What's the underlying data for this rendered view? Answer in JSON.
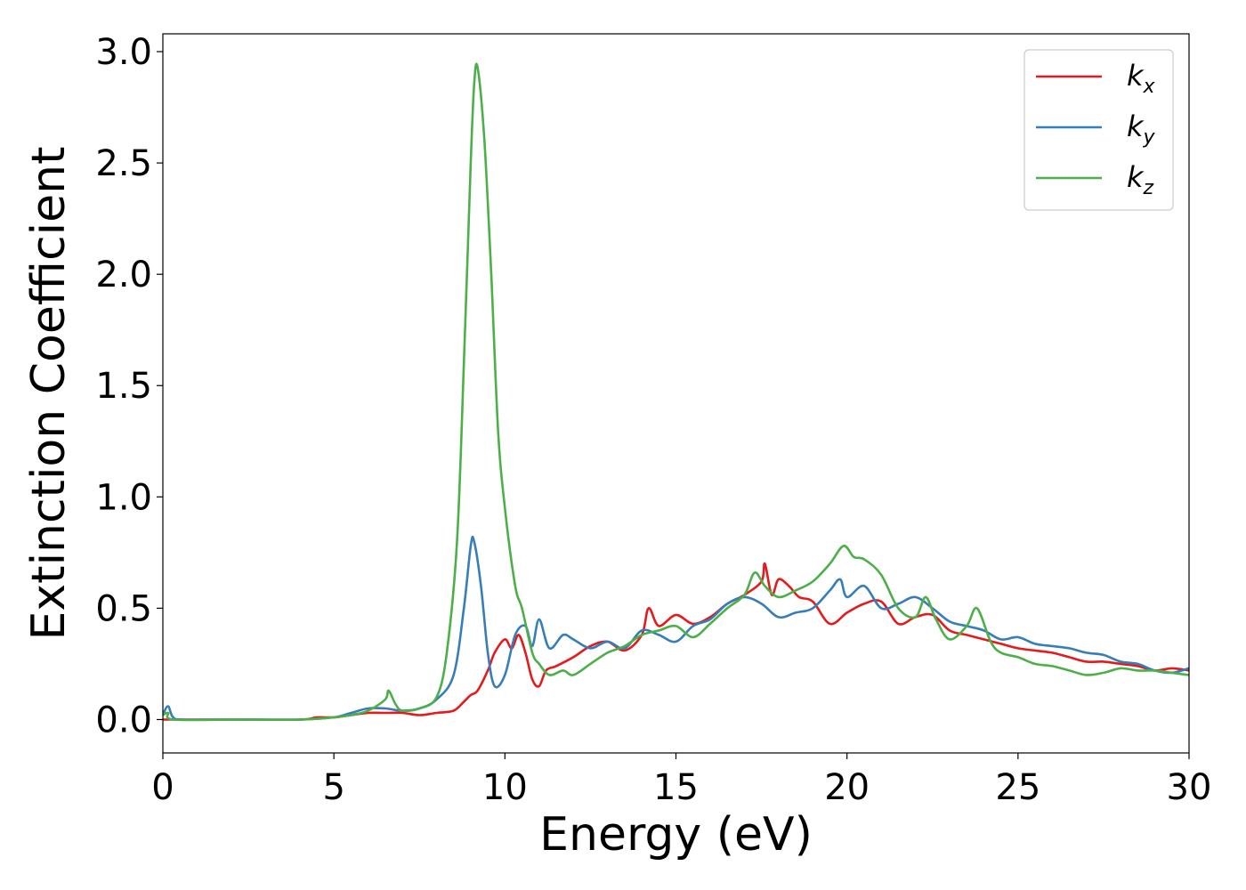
{
  "chart_data": {
    "type": "line",
    "xlabel": "Energy (eV)",
    "ylabel": "Extinction Coefficient",
    "xlim": [
      0,
      30
    ],
    "ylim": [
      -0.15,
      3.08
    ],
    "xticks": [
      0,
      5,
      10,
      15,
      20,
      25,
      30
    ],
    "yticks": [
      0.0,
      0.5,
      1.0,
      1.5,
      2.0,
      2.5,
      3.0
    ],
    "xtick_labels": [
      "0",
      "5",
      "10",
      "15",
      "20",
      "25",
      "30"
    ],
    "ytick_labels": [
      "0.0",
      "0.5",
      "1.0",
      "1.5",
      "2.0",
      "2.5",
      "3.0"
    ],
    "grid": false,
    "legend_position": "top-right",
    "series": [
      {
        "name": "k_x",
        "label_base": "k",
        "label_sub": "x",
        "color": "#e41a1c",
        "x": [
          0,
          0.3,
          2,
          4,
          4.5,
          5,
          5.5,
          6,
          6.5,
          7,
          7.5,
          8,
          8.5,
          8.8,
          9.0,
          9.2,
          9.5,
          9.7,
          10.0,
          10.2,
          10.4,
          10.6,
          10.8,
          11.0,
          11.2,
          11.5,
          12.0,
          12.5,
          13.0,
          13.5,
          14.0,
          14.2,
          14.5,
          15.0,
          15.5,
          16.0,
          16.5,
          17.0,
          17.5,
          17.6,
          17.8,
          18.0,
          18.3,
          18.6,
          19.0,
          19.5,
          20.0,
          20.5,
          21.0,
          21.5,
          22.0,
          22.5,
          23.0,
          23.5,
          24.0,
          24.5,
          25.0,
          25.5,
          26.0,
          26.5,
          27.0,
          27.5,
          28.0,
          28.5,
          29.0,
          29.5,
          30.0
        ],
        "values": [
          0.0,
          0.0,
          0.0,
          0.0,
          0.01,
          0.01,
          0.02,
          0.03,
          0.03,
          0.03,
          0.02,
          0.03,
          0.04,
          0.08,
          0.11,
          0.13,
          0.22,
          0.3,
          0.36,
          0.32,
          0.38,
          0.3,
          0.18,
          0.15,
          0.22,
          0.24,
          0.28,
          0.33,
          0.35,
          0.31,
          0.38,
          0.5,
          0.42,
          0.47,
          0.43,
          0.46,
          0.52,
          0.56,
          0.62,
          0.7,
          0.56,
          0.63,
          0.6,
          0.55,
          0.53,
          0.43,
          0.48,
          0.52,
          0.53,
          0.43,
          0.46,
          0.47,
          0.4,
          0.38,
          0.36,
          0.34,
          0.32,
          0.31,
          0.3,
          0.28,
          0.26,
          0.26,
          0.25,
          0.24,
          0.22,
          0.23,
          0.22
        ]
      },
      {
        "name": "k_y",
        "label_base": "k",
        "label_sub": "y",
        "color": "#377eb8",
        "x": [
          0,
          0.15,
          0.3,
          0.6,
          2,
          4,
          5,
          5.5,
          6,
          6.5,
          7,
          7.5,
          8,
          8.5,
          8.8,
          9.0,
          9.1,
          9.3,
          9.5,
          9.7,
          10.0,
          10.3,
          10.6,
          10.8,
          11.0,
          11.3,
          11.7,
          12.0,
          12.5,
          13.0,
          13.5,
          14.0,
          14.5,
          15.0,
          15.5,
          16.0,
          16.5,
          17.0,
          17.5,
          18.0,
          18.5,
          19.0,
          19.5,
          19.8,
          20.0,
          20.5,
          21.0,
          21.5,
          22.0,
          22.5,
          23.0,
          23.5,
          24.0,
          24.5,
          25.0,
          25.5,
          26.0,
          26.5,
          27.0,
          27.5,
          28.0,
          28.5,
          29.0,
          29.5,
          30.0
        ],
        "values": [
          0.02,
          0.06,
          0.01,
          0.0,
          0.0,
          0.0,
          0.01,
          0.03,
          0.05,
          0.05,
          0.04,
          0.05,
          0.09,
          0.2,
          0.5,
          0.78,
          0.8,
          0.6,
          0.3,
          0.15,
          0.2,
          0.38,
          0.42,
          0.33,
          0.45,
          0.32,
          0.38,
          0.36,
          0.32,
          0.35,
          0.32,
          0.4,
          0.38,
          0.35,
          0.42,
          0.45,
          0.52,
          0.55,
          0.52,
          0.46,
          0.48,
          0.5,
          0.58,
          0.63,
          0.55,
          0.6,
          0.5,
          0.52,
          0.55,
          0.5,
          0.44,
          0.42,
          0.4,
          0.36,
          0.37,
          0.34,
          0.33,
          0.32,
          0.3,
          0.29,
          0.26,
          0.25,
          0.22,
          0.21,
          0.23
        ]
      },
      {
        "name": "k_z",
        "label_base": "k",
        "label_sub": "z",
        "color": "#4daf4a",
        "x": [
          0,
          0.15,
          0.3,
          2,
          4,
          5,
          5.5,
          6,
          6.5,
          6.6,
          6.8,
          7,
          7.5,
          8,
          8.3,
          8.6,
          8.8,
          9.0,
          9.1,
          9.2,
          9.4,
          9.6,
          9.8,
          10.0,
          10.3,
          10.5,
          10.8,
          11.0,
          11.3,
          11.7,
          12.0,
          12.5,
          13.0,
          13.5,
          14.0,
          14.5,
          15.0,
          15.5,
          16.0,
          16.5,
          17.0,
          17.3,
          17.6,
          18.0,
          18.5,
          19.0,
          19.5,
          19.9,
          20.2,
          20.5,
          21.0,
          21.5,
          22.0,
          22.3,
          22.6,
          23.0,
          23.5,
          23.8,
          24.2,
          24.5,
          25.0,
          25.5,
          26.0,
          26.5,
          27.0,
          27.5,
          28.0,
          28.5,
          29.0,
          29.5,
          30.0
        ],
        "values": [
          0.02,
          0.03,
          0.0,
          0.0,
          0.0,
          0.01,
          0.02,
          0.04,
          0.09,
          0.13,
          0.07,
          0.04,
          0.05,
          0.1,
          0.3,
          0.8,
          1.6,
          2.5,
          2.85,
          2.93,
          2.6,
          2.0,
          1.3,
          0.95,
          0.6,
          0.5,
          0.3,
          0.25,
          0.2,
          0.22,
          0.2,
          0.25,
          0.3,
          0.33,
          0.38,
          0.4,
          0.42,
          0.37,
          0.43,
          0.5,
          0.56,
          0.66,
          0.6,
          0.55,
          0.58,
          0.62,
          0.7,
          0.78,
          0.73,
          0.72,
          0.65,
          0.5,
          0.46,
          0.55,
          0.45,
          0.36,
          0.42,
          0.5,
          0.35,
          0.3,
          0.28,
          0.25,
          0.24,
          0.22,
          0.2,
          0.21,
          0.23,
          0.22,
          0.22,
          0.21,
          0.2
        ]
      }
    ]
  }
}
